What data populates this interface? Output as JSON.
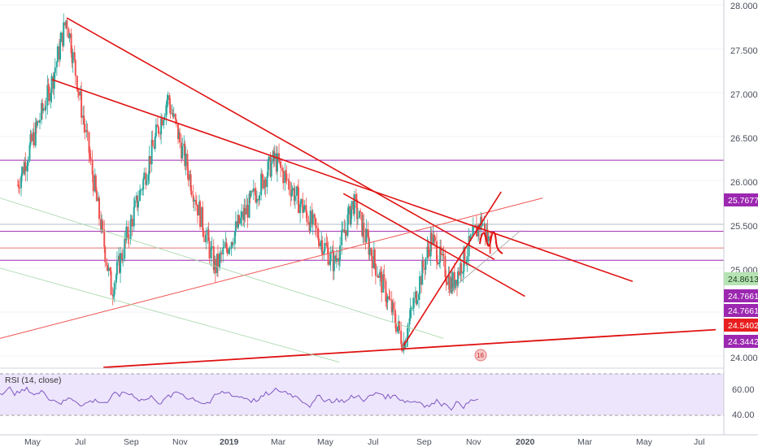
{
  "price_axis": {
    "ticks": [
      "28.0000",
      "27.5000",
      "27.0000",
      "26.5000",
      "26.0000",
      "25.5000",
      "25.0000",
      "24.0000"
    ]
  },
  "price_badges": [
    {
      "label": "25.7677",
      "color": "#9c27b0"
    },
    {
      "label": "24.8613",
      "color": "#b6e3b4"
    },
    {
      "label": "24.7661",
      "color": "#9c27b0"
    },
    {
      "label": "24.7661",
      "color": "#9c27b0"
    },
    {
      "label": "24.5402",
      "color": "#e91e1e"
    },
    {
      "label": "24.3442",
      "color": "#9c27b0"
    }
  ],
  "time_axis": {
    "labels": [
      "May",
      "Jul",
      "Sep",
      "Nov",
      "2019",
      "Mar",
      "May",
      "Jul",
      "Sep",
      "Nov",
      "2020",
      "Mar",
      "May",
      "Jul"
    ]
  },
  "rsi": {
    "label": "RSI (14, close)",
    "ticks": [
      "60.00",
      "40.00"
    ]
  },
  "event_icon": {
    "label": "16"
  },
  "colors": {
    "up": "#26a69a",
    "down": "#ef5350",
    "trendline": "#e01010",
    "level_purple": "#9c27b0",
    "rsi_band": "#e9e0fb",
    "rsi_line": "#7e57c2"
  },
  "chart_data": {
    "type": "candlestick",
    "x_range": [
      "2018-04-10",
      "2020-08-01"
    ],
    "ylim": [
      23.9,
      28.1
    ],
    "key_points": [
      {
        "date": "2018-05-01",
        "price": 25.95
      },
      {
        "date": "2018-06-10",
        "price": 27.1
      },
      {
        "date": "2018-06-28",
        "price": 27.85
      },
      {
        "date": "2018-08-20",
        "price": 24.75
      },
      {
        "date": "2018-10-25",
        "price": 26.95
      },
      {
        "date": "2018-12-20",
        "price": 25.0
      },
      {
        "date": "2019-02-28",
        "price": 26.25
      },
      {
        "date": "2019-05-10",
        "price": 25.05
      },
      {
        "date": "2019-06-01",
        "price": 25.75
      },
      {
        "date": "2019-07-30",
        "price": 24.15
      },
      {
        "date": "2019-09-01",
        "price": 25.35
      },
      {
        "date": "2019-09-25",
        "price": 24.8
      },
      {
        "date": "2019-10-30",
        "price": 25.55
      },
      {
        "date": "2019-11-10",
        "price": 25.25
      }
    ],
    "horizontal_levels": [
      26.23,
      25.5,
      25.42,
      25.23,
      25.09
    ],
    "rsi_levels": [
      70,
      30
    ]
  }
}
